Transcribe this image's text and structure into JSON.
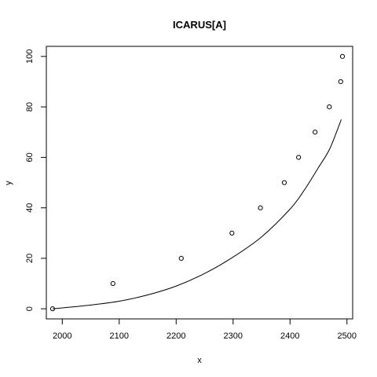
{
  "chart_data": {
    "type": "scatter",
    "title": "ICARUS[A]",
    "xlabel": "x",
    "ylabel": "y",
    "xlim": [
      1972,
      2510
    ],
    "ylim": [
      -4,
      104
    ],
    "x_ticks": [
      2000,
      2100,
      2200,
      2300,
      2400,
      2500
    ],
    "y_ticks": [
      0,
      20,
      40,
      60,
      80,
      100
    ],
    "grid": false,
    "colors": {
      "points": "#000000",
      "curve": "#000000",
      "background": "#ffffff"
    },
    "series": [
      {
        "type": "scatter",
        "x": [
          1983,
          2089,
          2209,
          2298,
          2348,
          2390,
          2415,
          2444,
          2469,
          2489,
          2492
        ],
        "y": [
          0,
          10,
          20,
          30,
          40,
          50,
          60,
          70,
          80,
          90,
          100
        ]
      },
      {
        "type": "line",
        "x": [
          1983,
          2050,
          2100,
          2150,
          2200,
          2250,
          2300,
          2350,
          2400,
          2425,
          2450,
          2470,
          2490
        ],
        "y": [
          0,
          1.5,
          3,
          5.5,
          9,
          14,
          20.5,
          28.5,
          39.5,
          47,
          56,
          63.5,
          75
        ]
      }
    ]
  }
}
